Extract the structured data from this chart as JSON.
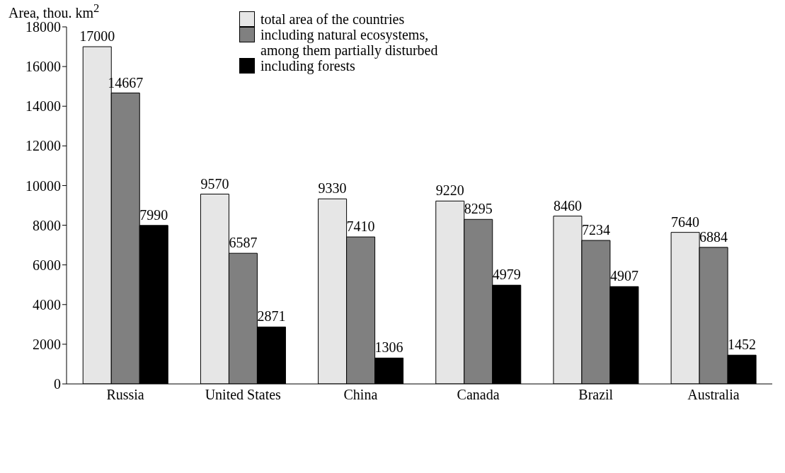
{
  "chart_data": {
    "type": "bar",
    "ylabel": "Area, thou. km$^{2}$",
    "categories": [
      "Russia",
      "United States",
      "China",
      "Canada",
      "Brazil",
      "Australia"
    ],
    "series": [
      {
        "name": "total area of the countries",
        "color": "#e6e6e6",
        "values": [
          17000,
          9570,
          9330,
          9220,
          8460,
          7640
        ]
      },
      {
        "name": "including natural ecosystems, among them partially disturbed",
        "color": "#808080",
        "values": [
          14667,
          6587,
          7410,
          8295,
          7234,
          6884
        ]
      },
      {
        "name": "including forests",
        "color": "#000000",
        "values": [
          7990,
          2871,
          1306,
          4979,
          4907,
          1452
        ]
      }
    ],
    "ylim": [
      0,
      18000
    ],
    "yticks": [
      0,
      2000,
      4000,
      6000,
      8000,
      10000,
      12000,
      14000,
      16000,
      18000
    ],
    "data_labels": true,
    "legend": "top",
    "grid": false
  }
}
